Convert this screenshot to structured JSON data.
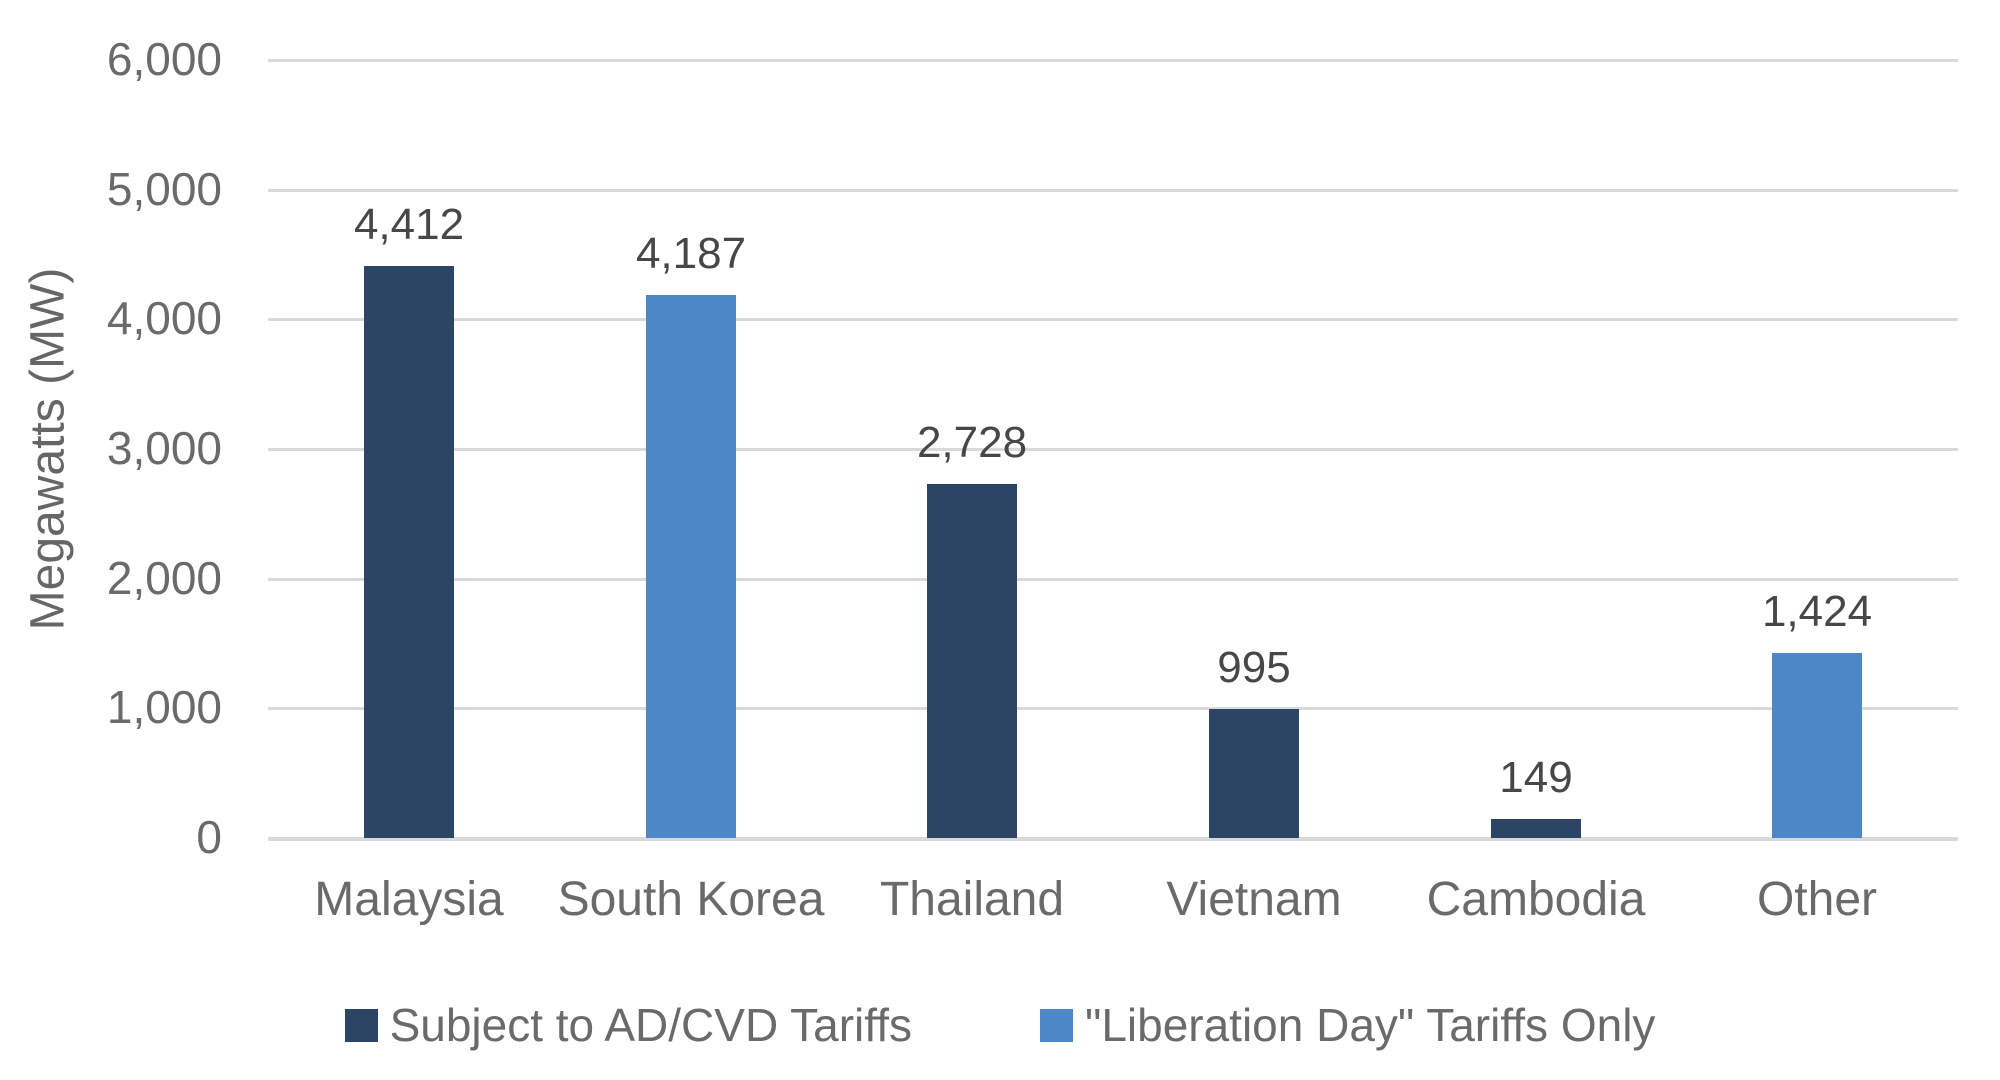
{
  "chart_data": {
    "type": "bar",
    "title": "",
    "xlabel": "",
    "ylabel": "Megawatts (MW)",
    "ylim": [
      0,
      6000
    ],
    "grid": true,
    "legend_position": "bottom",
    "categories": [
      "Malaysia",
      "South Korea",
      "Thailand",
      "Vietnam",
      "Cambodia",
      "Other"
    ],
    "values": [
      4412,
      4187,
      2728,
      995,
      149,
      1424
    ],
    "value_labels": [
      "4,412",
      "4,187",
      "2,728",
      "995",
      "149",
      "1,424"
    ],
    "bar_series": [
      "ad_cvd",
      "liberation_day",
      "ad_cvd",
      "ad_cvd",
      "ad_cvd",
      "liberation_day"
    ],
    "series": [
      {
        "id": "ad_cvd",
        "name": "Subject to AD/CVD Tariffs",
        "color": "#2C4565"
      },
      {
        "id": "liberation_day",
        "name": "\"Liberation Day\" Tariffs Only",
        "color": "#4E87C7"
      }
    ],
    "yticks": [
      {
        "value": 0,
        "label": "0"
      },
      {
        "value": 1000,
        "label": "1,000"
      },
      {
        "value": 2000,
        "label": "2,000"
      },
      {
        "value": 3000,
        "label": "3,000"
      },
      {
        "value": 4000,
        "label": "4,000"
      },
      {
        "value": 5000,
        "label": "5,000"
      },
      {
        "value": 6000,
        "label": "6,000"
      }
    ]
  },
  "colors": {
    "background": "#FFFFFF",
    "gridline": "#D9D9D9",
    "tick_text": "#6A6A6A",
    "category_text": "#6A6A6A",
    "data_label_text": "#474747",
    "legend_text": "#6A6A6A",
    "axis_title_text": "#666666"
  }
}
